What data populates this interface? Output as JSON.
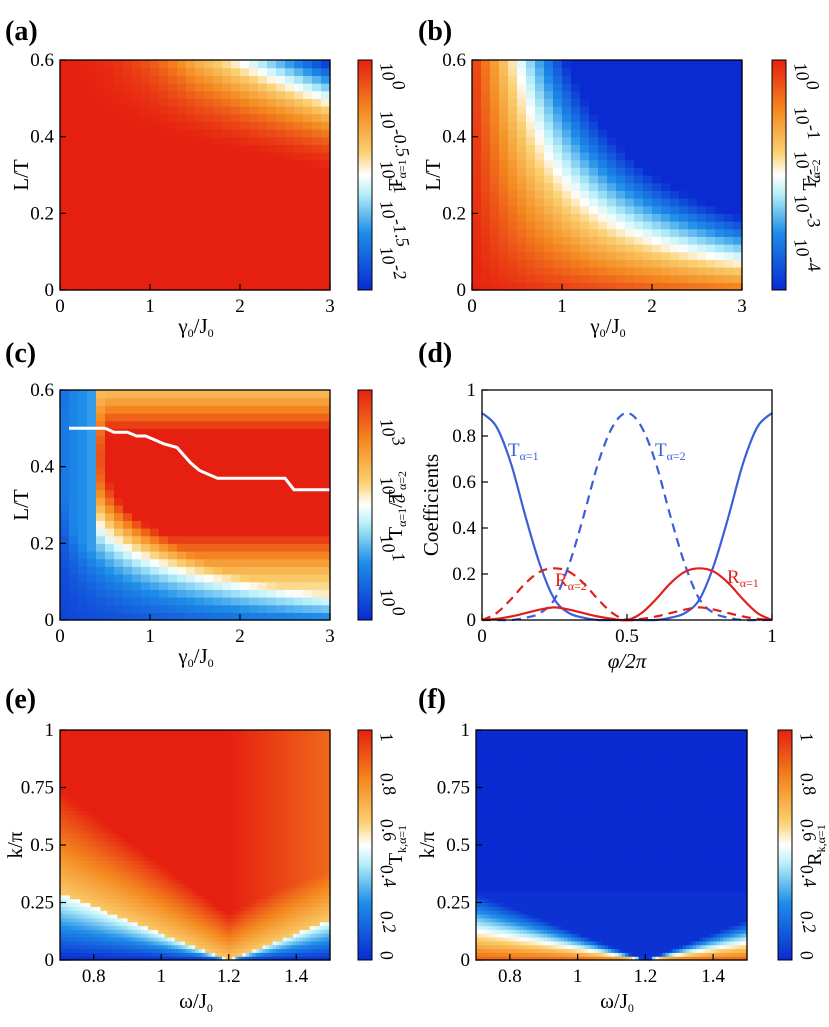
{
  "colors": {
    "low": "#0a2ad2",
    "mid": "#ffffff",
    "high": "#e62010",
    "blue_line": "#3a5fd9",
    "red_line": "#e0201a",
    "white_line": "#ffffff"
  },
  "chart_data": [
    {
      "panel": "(a)",
      "type": "heatmap",
      "xlabel": "γ0/J0",
      "ylabel": "L/T",
      "xlim": [
        0,
        3
      ],
      "ylim": [
        0,
        0.6
      ],
      "xticks": [
        "0",
        "1",
        "2",
        "3"
      ],
      "yticks": [
        "0",
        "0.2",
        "0.4",
        "0.6"
      ],
      "colorbar": {
        "label": "Tα=1",
        "scale": "log",
        "range": [
          0.00316,
          1
        ],
        "ticks": [
          "10^0",
          "10^-0.5",
          "10^-1",
          "10^-1.5",
          "10^-2"
        ]
      },
      "description_values": {
        "value_region": "≈1 except upper-right corner, minimum ≈10^-2 at γ0/J0=3, L/T=0.6"
      }
    },
    {
      "panel": "(b)",
      "type": "heatmap",
      "xlabel": "γ0/J0",
      "ylabel": "L/T",
      "xlim": [
        0,
        3
      ],
      "ylim": [
        0,
        0.6
      ],
      "xticks": [
        "0",
        "1",
        "2",
        "3"
      ],
      "yticks": [
        "0",
        "0.2",
        "0.4",
        "0.6"
      ],
      "colorbar": {
        "label": "Tα=2",
        "scale": "log",
        "range": [
          5e-05,
          1
        ],
        "ticks": [
          "10^0",
          "10^-1",
          "10^-2",
          "10^-3",
          "10^-4"
        ]
      }
    },
    {
      "panel": "(c)",
      "type": "heatmap",
      "xlabel": "γ0/J0",
      "ylabel": "L/T",
      "xlim": [
        0,
        3
      ],
      "ylim": [
        0,
        0.6
      ],
      "xticks": [
        "0",
        "1",
        "2",
        "3"
      ],
      "yticks": [
        "0",
        "0.2",
        "0.4",
        "0.6"
      ],
      "colorbar": {
        "label": "Tα=1/Tα=2",
        "scale": "log",
        "range": [
          1,
          5000
        ],
        "ticks": [
          "10^3",
          "10^2",
          "10^1",
          "10^0"
        ]
      },
      "optimal_line": {
        "x": [
          0.1,
          0.5,
          0.6,
          0.75,
          0.85,
          0.95,
          1.05,
          1.15,
          1.3,
          1.45,
          1.55,
          1.75,
          2.5,
          2.6,
          3.0
        ],
        "y": [
          0.5,
          0.5,
          0.49,
          0.49,
          0.48,
          0.48,
          0.47,
          0.46,
          0.45,
          0.41,
          0.39,
          0.37,
          0.37,
          0.34,
          0.34
        ]
      }
    },
    {
      "panel": "(d)",
      "type": "line",
      "xlabel": "φ/2π",
      "ylabel": "Coefficients",
      "xlim": [
        0,
        1
      ],
      "ylim": [
        0,
        1
      ],
      "xticks": [
        "0",
        "0.5",
        "1"
      ],
      "yticks": [
        "0",
        "0.2",
        "0.4",
        "0.6",
        "0.8",
        "1"
      ],
      "series": [
        {
          "name": "Tα=1",
          "style": "solid",
          "color": "blue",
          "x": [
            0,
            0.05,
            0.1,
            0.15,
            0.2,
            0.25,
            0.3,
            0.35,
            0.4,
            0.45,
            0.5,
            0.55,
            0.6,
            0.65,
            0.7,
            0.75,
            0.8,
            0.85,
            0.9,
            0.95,
            1
          ],
          "y": [
            0.9,
            0.84,
            0.68,
            0.45,
            0.24,
            0.09,
            0.03,
            0.01,
            0.0,
            0.0,
            0.0,
            0.0,
            0.0,
            0.01,
            0.03,
            0.09,
            0.24,
            0.45,
            0.68,
            0.84,
            0.9
          ]
        },
        {
          "name": "Tα=2",
          "style": "dashed",
          "color": "blue",
          "x": [
            0,
            0.05,
            0.1,
            0.15,
            0.2,
            0.25,
            0.3,
            0.35,
            0.4,
            0.45,
            0.5,
            0.55,
            0.6,
            0.65,
            0.7,
            0.75,
            0.8,
            0.85,
            0.9,
            0.95,
            1
          ],
          "y": [
            0.0,
            0.0,
            0.0,
            0.01,
            0.03,
            0.09,
            0.24,
            0.45,
            0.68,
            0.84,
            0.9,
            0.84,
            0.68,
            0.45,
            0.24,
            0.09,
            0.03,
            0.01,
            0.0,
            0.0,
            0.0
          ]
        },
        {
          "name": "Rα=1",
          "style": "solid",
          "color": "red",
          "x": [
            0,
            0.05,
            0.1,
            0.15,
            0.2,
            0.25,
            0.3,
            0.35,
            0.4,
            0.45,
            0.5,
            0.55,
            0.6,
            0.65,
            0.7,
            0.75,
            0.8,
            0.85,
            0.9,
            0.95,
            1
          ],
          "y": [
            0.0,
            0.005,
            0.015,
            0.03,
            0.045,
            0.055,
            0.045,
            0.03,
            0.015,
            0.005,
            0.0,
            0.03,
            0.09,
            0.16,
            0.21,
            0.225,
            0.21,
            0.16,
            0.09,
            0.03,
            0.0
          ]
        },
        {
          "name": "Rα=2",
          "style": "dashed",
          "color": "red",
          "x": [
            0,
            0.05,
            0.1,
            0.15,
            0.2,
            0.25,
            0.3,
            0.35,
            0.4,
            0.45,
            0.5,
            0.55,
            0.6,
            0.65,
            0.7,
            0.75,
            0.8,
            0.85,
            0.9,
            0.95,
            1
          ],
          "y": [
            0.0,
            0.03,
            0.09,
            0.16,
            0.21,
            0.225,
            0.21,
            0.16,
            0.09,
            0.03,
            0.0,
            0.005,
            0.015,
            0.03,
            0.045,
            0.055,
            0.045,
            0.03,
            0.015,
            0.005,
            0.0
          ]
        }
      ]
    },
    {
      "panel": "(e)",
      "type": "heatmap",
      "xlabel": "ω/J0",
      "ylabel": "k/π",
      "xlim": [
        0.7,
        1.5
      ],
      "ylim": [
        0,
        1
      ],
      "xticks": [
        "0.8",
        "1",
        "1.2",
        "1.4"
      ],
      "yticks": [
        "0",
        "0.25",
        "0.5",
        "0.75",
        "1"
      ],
      "colorbar": {
        "label": "Tk,α=1",
        "scale": "linear",
        "range": [
          0,
          1
        ],
        "ticks": [
          "1",
          "0.8",
          "0.6",
          "0.4",
          "0.2",
          "0"
        ]
      }
    },
    {
      "panel": "(f)",
      "type": "heatmap",
      "xlabel": "ω/J0",
      "ylabel": "k/π",
      "xlim": [
        0.7,
        1.5
      ],
      "ylim": [
        0,
        1
      ],
      "xticks": [
        "0.8",
        "1",
        "1.2",
        "1.4"
      ],
      "yticks": [
        "0",
        "0.25",
        "0.5",
        "0.75",
        "1"
      ],
      "colorbar": {
        "label": "Rk,α=1",
        "scale": "linear",
        "range": [
          0,
          1
        ],
        "ticks": [
          "1",
          "0.8",
          "0.6",
          "0.4",
          "0.2",
          "0"
        ]
      }
    }
  ],
  "text": {
    "a": "(a)",
    "b": "(b)",
    "c": "(c)",
    "d": "(d)",
    "e": "(e)",
    "f": "(f)",
    "gamma_base": "γ",
    "sub0": "0",
    "slashJ": "/J",
    "omega_base": "ω/J",
    "LT": "L/T",
    "kpi": "k/π",
    "coef": "Coefficients",
    "phi": "φ/2π",
    "T": "T",
    "R": "R",
    "a1": "α=1",
    "a2": "α=2",
    "ka1": "k,α=1",
    "slash": "/",
    "ten": "10"
  }
}
